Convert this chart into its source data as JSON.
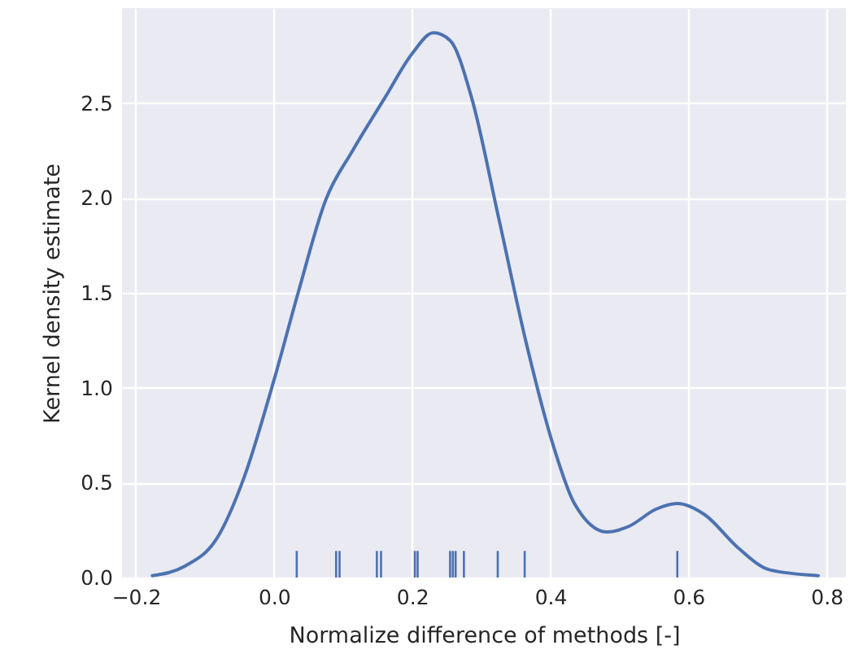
{
  "chart_data": {
    "type": "line",
    "xlabel": "Normalize difference of methods [-]",
    "ylabel": "Kernel density estimate",
    "xlim": [
      -0.22,
      0.828
    ],
    "ylim": [
      0,
      3.0
    ],
    "xticks": [
      {
        "value": -0.2,
        "label": "−0.2"
      },
      {
        "value": 0,
        "label": "0.0"
      },
      0.2,
      0.4,
      0.6,
      0.8
    ],
    "yticks": [
      {
        "value": 0,
        "label": "0.0"
      },
      0.5,
      {
        "value": 1,
        "label": "1.0"
      },
      1.5,
      {
        "value": 2,
        "label": "2.0"
      },
      2.5
    ],
    "grid": true,
    "series": [
      {
        "color": "#4c72b0",
        "x": [
          -0.176,
          -0.129,
          -0.082,
          -0.043,
          0.0,
          0.035,
          0.075,
          0.114,
          0.161,
          0.2,
          0.231,
          0.255,
          0.286,
          0.325,
          0.365,
          0.404,
          0.435,
          0.482,
          0.514,
          0.553,
          0.584,
          0.624,
          0.671,
          0.718,
          0.788
        ],
        "values": [
          0.01,
          0.06,
          0.21,
          0.53,
          1.04,
          1.5,
          1.99,
          2.25,
          2.53,
          2.76,
          2.87,
          2.83,
          2.53,
          1.9,
          1.24,
          0.7,
          0.39,
          0.24,
          0.27,
          0.36,
          0.39,
          0.33,
          0.16,
          0.04,
          0.01
        ]
      },
      {
        "type": "bar",
        "color": "#4c72b0",
        "x": [
          0.033,
          0.09,
          0.095,
          0.149,
          0.155,
          0.204,
          0.208,
          0.255,
          0.259,
          0.263,
          0.275,
          0.324,
          0.363,
          0.584
        ],
        "values": [
          0.14,
          0.14,
          0.14,
          0.14,
          0.14,
          0.14,
          0.14,
          0.14,
          0.14,
          0.14,
          0.14,
          0.14,
          0.14,
          0.14
        ]
      }
    ]
  }
}
